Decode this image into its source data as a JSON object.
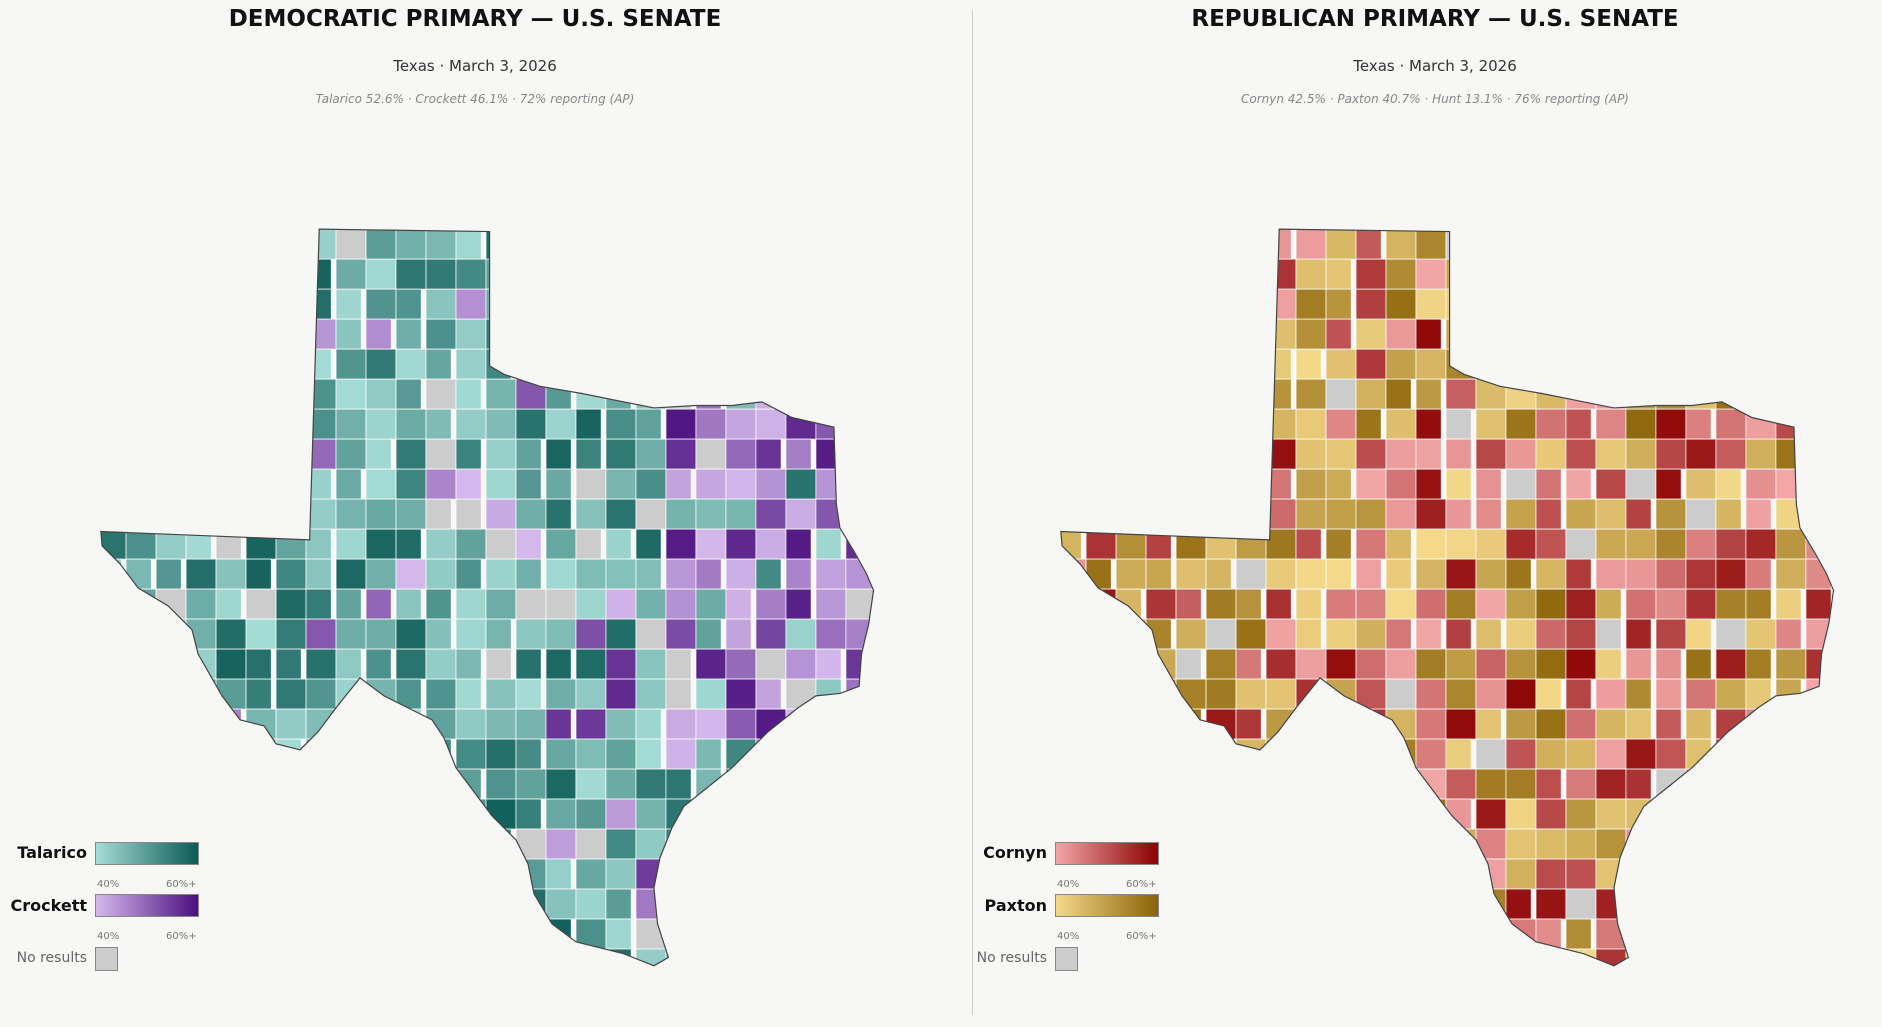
{
  "dem": {
    "title": "DEMOCRATIC PRIMARY — U.S. SENATE",
    "subtitle": "Texas · March 3, 2026",
    "summary": "Talarico 52.6%  ·  Crockett 46.1%  ·  72% reporting (AP)",
    "legend": [
      {
        "name": "Talarico",
        "low": "40%",
        "high": "60%+",
        "color_low": "#a6dcd6",
        "color_high": "#0b5a55"
      },
      {
        "name": "Crockett",
        "low": "40%",
        "high": "60%+",
        "color_low": "#d4b8ec",
        "color_high": "#4a0f7e"
      }
    ],
    "no_results": "No results"
  },
  "rep": {
    "title": "REPUBLICAN PRIMARY — U.S. SENATE",
    "subtitle": "Texas · March 3, 2026",
    "summary": "Cornyn 42.5%  ·  Paxton 40.7%  ·  Hunt 13.1%  ·  76% reporting (AP)",
    "legend": [
      {
        "name": "Cornyn",
        "low": "40%",
        "high": "60%+",
        "color_low": "#f2a6a6",
        "color_high": "#8b0000"
      },
      {
        "name": "Paxton",
        "low": "40%",
        "high": "60%+",
        "color_low": "#f5d98a",
        "color_high": "#8b6206"
      }
    ],
    "no_results": "No results"
  },
  "colors": {
    "no_results": "#cccccc",
    "background": "#f7f7f5"
  },
  "chart_data": {
    "type": "choropleth",
    "region": "Texas counties"
  }
}
